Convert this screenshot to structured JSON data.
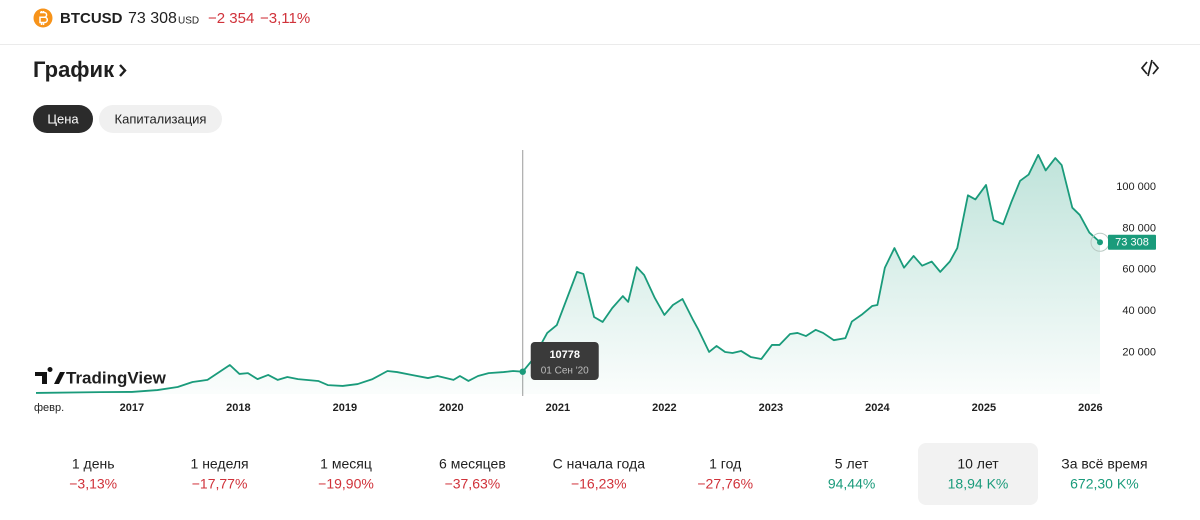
{
  "header": {
    "ticker": "BTCUSD",
    "price": "73 308",
    "currency": "USD",
    "change": "−2 354",
    "change_pct": "−3,11%"
  },
  "section_title": "График",
  "tabs": [
    "Цена",
    "Капитализация"
  ],
  "active_tab": 0,
  "watermark": "TradingView",
  "chart_data": {
    "type": "line",
    "series": [
      {
        "name": "BTCUSD",
        "color": "#1a9b7b",
        "x": [
          2016.1,
          2016.7,
          2017.0,
          2017.24,
          2017.43,
          2017.57,
          2017.71,
          2017.92,
          2018.01,
          2018.09,
          2018.18,
          2018.28,
          2018.37,
          2018.46,
          2018.56,
          2018.75,
          2018.84,
          2018.98,
          2019.12,
          2019.26,
          2019.4,
          2019.49,
          2019.63,
          2019.78,
          2019.87,
          2020.02,
          2020.08,
          2020.16,
          2020.25,
          2020.35,
          2020.49,
          2020.58,
          2020.67,
          2020.76,
          2020.9,
          2020.99,
          2021.18,
          2021.24,
          2021.34,
          2021.42,
          2021.51,
          2021.61,
          2021.66,
          2021.74,
          2021.81,
          2021.91,
          2022.0,
          2022.08,
          2022.17,
          2022.27,
          2022.32,
          2022.42,
          2022.49,
          2022.57,
          2022.64,
          2022.72,
          2022.81,
          2022.91,
          2023.01,
          2023.08,
          2023.18,
          2023.25,
          2023.33,
          2023.42,
          2023.49,
          2023.59,
          2023.7,
          2023.76,
          2023.86,
          2023.95,
          2024.0,
          2024.07,
          2024.16,
          2024.25,
          2024.34,
          2024.42,
          2024.51,
          2024.59,
          2024.68,
          2024.75,
          2024.85,
          2024.92,
          2025.02,
          2025.09,
          2025.18,
          2025.26,
          2025.34,
          2025.42,
          2025.51,
          2025.58,
          2025.67,
          2025.73,
          2025.83,
          2025.9,
          2025.99,
          2026.09
        ],
        "values": [
          500,
          900,
          1000,
          1900,
          3400,
          5800,
          6800,
          14000,
          9700,
          10100,
          7200,
          9200,
          6800,
          8200,
          7200,
          6300,
          4300,
          3900,
          4800,
          7200,
          11100,
          10600,
          9200,
          7700,
          8700,
          6800,
          8700,
          6300,
          8700,
          10100,
          10600,
          11100,
          10778,
          16400,
          29500,
          33300,
          59000,
          58000,
          37200,
          34800,
          41500,
          47300,
          44500,
          61300,
          57500,
          46400,
          38200,
          43000,
          45900,
          35700,
          31000,
          20300,
          23200,
          20300,
          19800,
          20800,
          17900,
          16900,
          23700,
          23700,
          29000,
          29500,
          28000,
          31000,
          29500,
          26000,
          27000,
          35000,
          38600,
          42500,
          43000,
          61000,
          70500,
          61000,
          66700,
          62000,
          64000,
          59000,
          64000,
          70500,
          96000,
          94000,
          101000,
          84000,
          82000,
          93000,
          103000,
          106000,
          115500,
          108000,
          114000,
          110600,
          90000,
          86500,
          78000,
          73308
        ]
      }
    ],
    "xlim": [
      2016.1,
      2026.09
    ],
    "xticks": [
      {
        "value": 2016.1,
        "label": "февр."
      },
      2017,
      2018,
      2019,
      2020,
      2021,
      2022,
      2023,
      2024,
      2025,
      2026
    ],
    "ylim": [
      0,
      120000
    ],
    "yticks": [
      {
        "value": 20000,
        "label": "20 000"
      },
      {
        "value": 40000,
        "label": "40 000"
      },
      {
        "value": 60000,
        "label": "60 000"
      },
      {
        "value": 80000,
        "label": "80 000"
      },
      {
        "value": 100000,
        "label": "100 000"
      }
    ],
    "grid": false,
    "tooltip": {
      "x": 2020.67,
      "value": 10778,
      "date": "01 Сен '20"
    },
    "last_price": {
      "value": 73308,
      "label": "73 308"
    }
  },
  "periods": [
    {
      "label": "1 день",
      "change": "−3,13%"
    },
    {
      "label": "1 неделя",
      "change": "−17,77%"
    },
    {
      "label": "1 месяц",
      "change": "−19,90%"
    },
    {
      "label": "6 месяцев",
      "change": "−37,63%"
    },
    {
      "label": "С начала года",
      "change": "−16,23%"
    },
    {
      "label": "1 год",
      "change": "−27,76%"
    },
    {
      "label": "5 лет",
      "change": "94,44%"
    },
    {
      "label": "10 лет",
      "change": "18,94 K%"
    },
    {
      "label": "За всё время",
      "change": "672,30 K%"
    }
  ],
  "selected_period": 7
}
